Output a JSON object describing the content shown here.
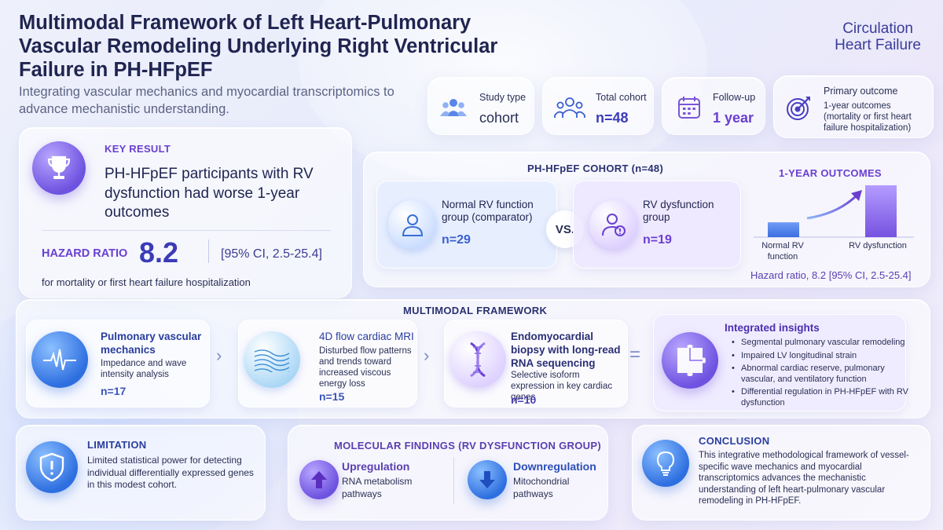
{
  "header": {
    "title": "Multimodal Framework of Left Heart-Pulmonary Vascular Remodeling Underlying Right Ventricular Failure in PH-HFpEF",
    "subtitle": "Integrating vascular mechanics and myocardial transcriptomics to advance mechanistic understanding.",
    "journal_line1": "Circulation",
    "journal_line2": "Heart Failure"
  },
  "stats": [
    {
      "label": "Study type",
      "value": "cohort",
      "icon": "people-group-icon"
    },
    {
      "label": "Total cohort",
      "value": "n=48",
      "icon": "users-outline-icon"
    },
    {
      "label": "Follow-up",
      "value": "1 year",
      "icon": "calendar-icon"
    },
    {
      "label": "Primary outcome",
      "value": "1-year outcomes (mortality or first heart failure hospitalization)",
      "icon": "target-icon"
    }
  ],
  "key_result": {
    "label": "KEY RESULT",
    "text": "PH-HFpEF participants with RV dysfunction had worse 1-year outcomes",
    "hr_label": "HAZARD RATIO",
    "hr_value": "8.2",
    "ci": "[95% CI, 2.5-25.4]",
    "note": "for mortality or first heart failure hospitalization",
    "icon": "trophy-icon"
  },
  "cohort": {
    "heading": "PH-HFpEF COHORT (n=48)",
    "group1_name": "Normal RV function group (comparator)",
    "group1_n": "n=29",
    "vs": "VS.",
    "group2_name": "RV dysfunction group",
    "group2_n": "n=19",
    "outcomes_heading": "1-YEAR OUTCOMES",
    "bar1_label": "Normal RV function",
    "bar2_label": "RV dysfunction",
    "bar1_value": 1,
    "bar2_value": 3.5,
    "hr_caption": "Hazard ratio, 8.2 [95% CI, 2.5-25.4]"
  },
  "framework": {
    "heading": "MULTIMODAL FRAMEWORK",
    "items": [
      {
        "title": "Pulmonary vascular mechanics",
        "desc": "Impedance and wave intensity analysis",
        "n": "n=17",
        "icon": "waveform-icon"
      },
      {
        "title": "4D flow cardiac MRI",
        "desc": "Disturbed flow patterns and trends toward increased viscous energy loss",
        "n": "n=15",
        "icon": "flow-lines-icon"
      },
      {
        "title": "Endomyocardial biopsy with long-read RNA sequencing",
        "desc": "Selective isoform expression in key cardiac genes",
        "n": "n=10",
        "icon": "dna-icon"
      }
    ],
    "chevron": "›",
    "equals": "=",
    "insights_title": "Integrated insights",
    "insights": [
      "Segmental pulmonary vascular remodeling",
      "Impaired LV longitudinal strain",
      "Abnormal cardiac reserve, pulmonary vascular, and ventilatory function",
      "Differential regulation in PH-HFpEF with RV dysfunction"
    ],
    "insights_icon": "puzzle-icon"
  },
  "limitation": {
    "heading": "LIMITATION",
    "text": "Limited statistical power for detecting individual differentially expressed genes in this modest cohort.",
    "icon": "shield-alert-icon"
  },
  "molecular": {
    "heading": "MOLECULAR FINDINGS (RV DYSFUNCTION GROUP)",
    "up_title": "Upregulation",
    "up_desc": "RNA metabolism pathways",
    "down_title": "Downregulation",
    "down_desc": "Mitochondrial pathways"
  },
  "conclusion": {
    "heading": "CONCLUSION",
    "text": "This integrative methodological framework of vessel-specific wave mechanics and myocardial transcriptomics advances the mechanistic understanding of left heart-pulmonary vascular remodeling in PH-HFpEF.",
    "icon": "lightbulb-icon"
  }
}
